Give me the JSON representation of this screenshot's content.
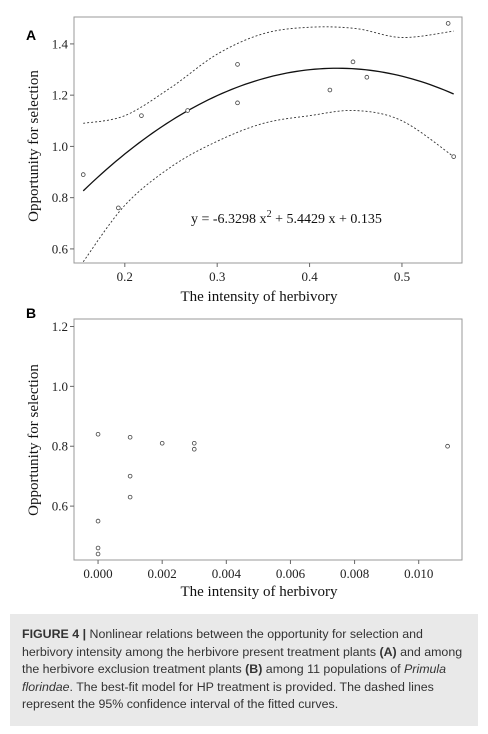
{
  "chart_data": [
    {
      "panel": "A",
      "type": "scatter",
      "xlabel": "The intensity of herbivory",
      "ylabel": "Opportunity for selection",
      "xlim": [
        0.145,
        0.565
      ],
      "ylim": [
        0.545,
        1.505
      ],
      "xticks": [
        0.2,
        0.3,
        0.4,
        0.5
      ],
      "xtick_labels": [
        "0.2",
        "0.3",
        "0.4",
        "0.5"
      ],
      "yticks": [
        0.6,
        0.8,
        1.0,
        1.2,
        1.4
      ],
      "ytick_labels": [
        "0.6",
        "0.8",
        "1.0",
        "1.2",
        "1.4"
      ],
      "grid": false,
      "points": [
        {
          "x": 0.155,
          "y": 0.89
        },
        {
          "x": 0.193,
          "y": 0.76
        },
        {
          "x": 0.218,
          "y": 1.12
        },
        {
          "x": 0.268,
          "y": 1.14
        },
        {
          "x": 0.322,
          "y": 1.32
        },
        {
          "x": 0.322,
          "y": 1.17
        },
        {
          "x": 0.422,
          "y": 1.22
        },
        {
          "x": 0.447,
          "y": 1.33
        },
        {
          "x": 0.462,
          "y": 1.27
        },
        {
          "x": 0.55,
          "y": 1.48
        },
        {
          "x": 0.556,
          "y": 0.96
        }
      ],
      "fit": {
        "equation_prefix": "y = -6.3298 x",
        "equation_sup": "2",
        "equation_suffix": " + 5.4429 x + 0.135",
        "coefficients": {
          "a": -6.3298,
          "b": 5.4429,
          "c": 0.135
        },
        "x_range": [
          0.155,
          0.556
        ]
      },
      "confidence_band": {
        "x": [
          0.155,
          0.2,
          0.25,
          0.3,
          0.35,
          0.4,
          0.45,
          0.5,
          0.556
        ],
        "upper": [
          1.09,
          1.12,
          1.23,
          1.36,
          1.44,
          1.465,
          1.46,
          1.425,
          1.45
        ],
        "lower": [
          0.55,
          0.77,
          0.92,
          1.02,
          1.09,
          1.12,
          1.14,
          1.1,
          0.96
        ]
      }
    },
    {
      "panel": "B",
      "type": "scatter",
      "xlabel": "The intensity of herbivory",
      "ylabel": "Opportunity for selection",
      "xlim": [
        -0.00075,
        0.01135
      ],
      "ylim": [
        0.42,
        1.225
      ],
      "xticks": [
        0.0,
        0.002,
        0.004,
        0.006,
        0.008,
        0.01
      ],
      "xtick_labels": [
        "0.000",
        "0.002",
        "0.004",
        "0.006",
        "0.008",
        "0.010"
      ],
      "yticks": [
        0.6,
        0.8,
        1.0,
        1.2
      ],
      "ytick_labels": [
        "0.6",
        "0.8",
        "1.0",
        "1.2"
      ],
      "grid": false,
      "points": [
        {
          "x": 0.0,
          "y": 0.84
        },
        {
          "x": 0.0,
          "y": 0.55
        },
        {
          "x": 0.0,
          "y": 0.46
        },
        {
          "x": 0.0,
          "y": 0.44
        },
        {
          "x": 0.001,
          "y": 0.83
        },
        {
          "x": 0.001,
          "y": 0.7
        },
        {
          "x": 0.001,
          "y": 0.63
        },
        {
          "x": 0.002,
          "y": 0.81
        },
        {
          "x": 0.003,
          "y": 0.81
        },
        {
          "x": 0.003,
          "y": 0.79
        },
        {
          "x": 0.0109,
          "y": 0.8
        }
      ]
    }
  ],
  "caption": {
    "label": "FIGURE 4 |",
    "part1": " Nonlinear relations between the opportunity for selection and herbivory intensity among the herbivore present treatment plants ",
    "ref_a": "(A)",
    "part2": " and among the herbivore exclusion treatment plants ",
    "ref_b": "(B)",
    "part3": " among 11 populations of ",
    "species": "Primula florindae",
    "part4": ". The best-fit model for HP treatment is provided. The dashed lines represent the 95% confidence interval of the fitted curves."
  }
}
